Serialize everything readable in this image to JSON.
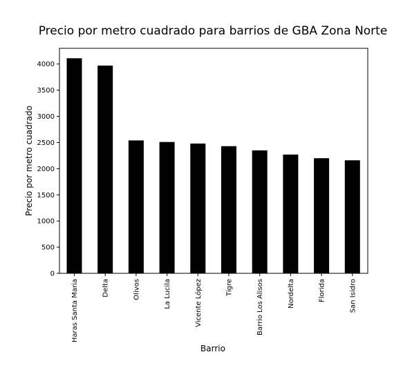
{
  "chart_data": {
    "type": "bar",
    "title": "Precio por metro cuadrado para barrios de GBA Zona Norte",
    "xlabel": "Barrio",
    "ylabel": "Precio por metro cuadrado",
    "categories": [
      "Haras Santa Maria",
      "Delta",
      "Olivos",
      "La Lucila",
      "Vicente López",
      "Tigre",
      "Barrio Los Alisos",
      "Nordelta",
      "Florida",
      "San Isidro"
    ],
    "values": [
      4110,
      3970,
      2540,
      2510,
      2480,
      2430,
      2350,
      2270,
      2200,
      2160
    ],
    "ylim": [
      0,
      4300
    ],
    "yticks": [
      0,
      500,
      1000,
      1500,
      2000,
      2500,
      3000,
      3500,
      4000
    ],
    "bar_color": "#000000",
    "grid": false,
    "legend": "none"
  }
}
